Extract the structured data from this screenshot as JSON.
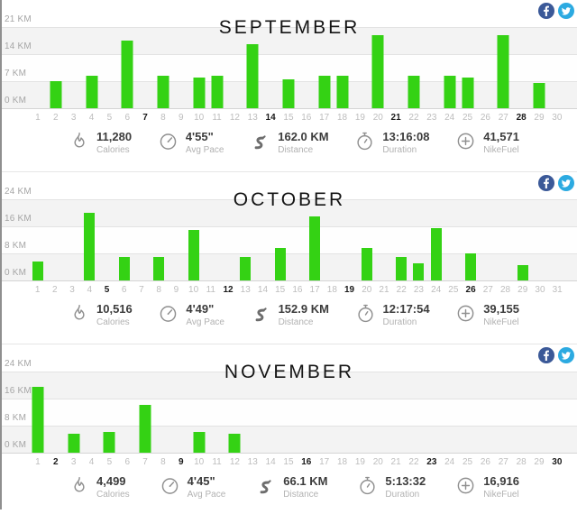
{
  "colors": {
    "bar_green": "#34d214",
    "facebook_blue": "#3b5998",
    "twitter_blue": "#2caae1",
    "stripe_gray": "#f3f3f3"
  },
  "share": {
    "buttons": [
      {
        "icon": "facebook-icon",
        "label": "Share on Facebook"
      },
      {
        "icon": "twitter-icon",
        "label": "Share on Twitter"
      }
    ]
  },
  "chart_data": [
    {
      "type": "bar",
      "title": "SEPTEMBER",
      "unit": "KM",
      "ymax_km": 21,
      "ytick_labels": [
        "21 KM",
        "14 KM",
        "7 KM",
        "0 KM"
      ],
      "days_in_month": 30,
      "bold_days": [
        7,
        14,
        21,
        28
      ],
      "runs_km": {
        "2": 7,
        "4": 8.5,
        "6": 17.5,
        "8": 8.5,
        "10": 8,
        "11": 8.5,
        "13": 16.5,
        "15": 7.5,
        "17": 8.5,
        "18": 8.5,
        "20": 19,
        "22": 8.5,
        "24": 8.5,
        "25": 8,
        "27": 19,
        "29": 6.5
      },
      "stats": [
        {
          "icon": "flame-icon",
          "value": "11,280",
          "label": "Calories"
        },
        {
          "icon": "gauge-icon",
          "value": "4'55\"",
          "label": "Avg Pace"
        },
        {
          "icon": "route-icon",
          "value": "162.0 KM",
          "label": "Distance"
        },
        {
          "icon": "stopwatch-icon",
          "value": "13:16:08",
          "label": "Duration"
        },
        {
          "icon": "plus-circle-icon",
          "value": "41,571",
          "label": "NikeFuel"
        }
      ]
    },
    {
      "type": "bar",
      "title": "OCTOBER",
      "unit": "KM",
      "ymax_km": 24,
      "ytick_labels": [
        "24 KM",
        "16 KM",
        "8 KM",
        "0 KM"
      ],
      "days_in_month": 31,
      "bold_days": [
        5,
        12,
        19,
        26
      ],
      "runs_km": {
        "1": 5.5,
        "4": 20,
        "6": 7,
        "8": 7,
        "10": 15,
        "13": 7,
        "15": 9.5,
        "17": 19,
        "20": 9.5,
        "22": 7,
        "23": 5,
        "24": 15.5,
        "26": 8,
        "29": 4.5
      },
      "stats": [
        {
          "icon": "flame-icon",
          "value": "10,516",
          "label": "Calories"
        },
        {
          "icon": "gauge-icon",
          "value": "4'49\"",
          "label": "Avg Pace"
        },
        {
          "icon": "route-icon",
          "value": "152.9 KM",
          "label": "Distance"
        },
        {
          "icon": "stopwatch-icon",
          "value": "12:17:54",
          "label": "Duration"
        },
        {
          "icon": "plus-circle-icon",
          "value": "39,155",
          "label": "NikeFuel"
        }
      ]
    },
    {
      "type": "bar",
      "title": "NOVEMBER",
      "unit": "KM",
      "ymax_km": 24,
      "ytick_labels": [
        "24 KM",
        "16 KM",
        "8 KM",
        "0 KM"
      ],
      "days_in_month": 30,
      "bold_days": [
        2,
        9,
        16,
        23,
        30
      ],
      "runs_km": {
        "1": 19.5,
        "3": 5.5,
        "5": 6,
        "7": 14,
        "10": 6,
        "12": 5.5
      },
      "stats": [
        {
          "icon": "flame-icon",
          "value": "4,499",
          "label": "Calories"
        },
        {
          "icon": "gauge-icon",
          "value": "4'45\"",
          "label": "Avg Pace"
        },
        {
          "icon": "route-icon",
          "value": "66.1 KM",
          "label": "Distance"
        },
        {
          "icon": "stopwatch-icon",
          "value": "5:13:32",
          "label": "Duration"
        },
        {
          "icon": "plus-circle-icon",
          "value": "16,916",
          "label": "NikeFuel"
        }
      ]
    }
  ]
}
